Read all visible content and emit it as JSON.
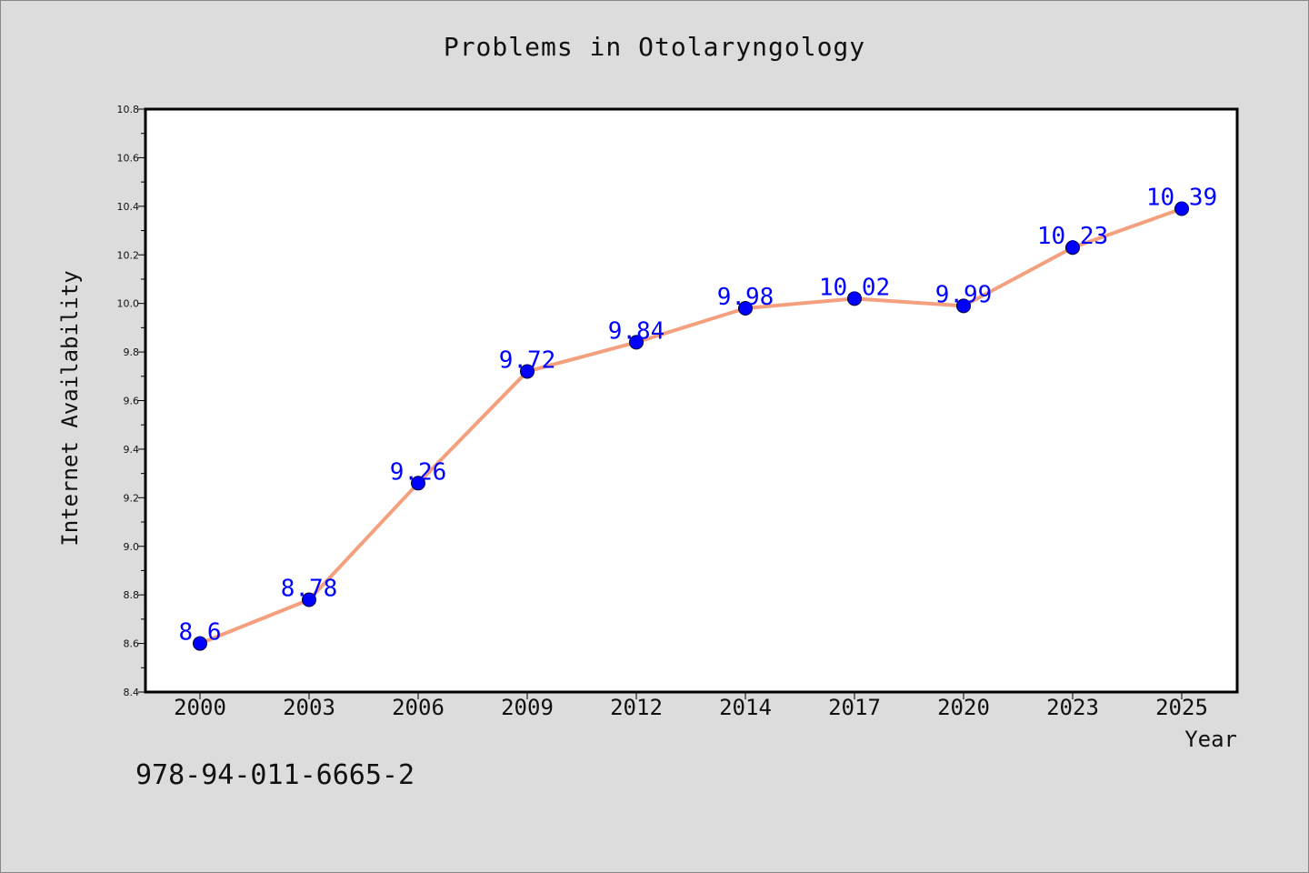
{
  "colors": {
    "background": "#dcdcdc",
    "plot_background": "#ffffff",
    "line": "#f4a07e",
    "marker": "#0000ff",
    "label": "#0000ff"
  },
  "isbn": "978-94-011-6665-2",
  "chart_data": {
    "type": "line",
    "title": "Problems in Otolaryngology",
    "xlabel": "Year",
    "ylabel": "Internet Availability",
    "categories": [
      "2000",
      "2003",
      "2006",
      "2009",
      "2012",
      "2014",
      "2017",
      "2020",
      "2023",
      "2025"
    ],
    "series": [
      {
        "values": [
          8.6,
          8.78,
          9.26,
          9.72,
          9.84,
          9.98,
          10.02,
          9.99,
          10.23,
          10.39
        ]
      }
    ],
    "data_labels": [
      "8.6",
      "8.78",
      "9.26",
      "9.72",
      "9.84",
      "9.98",
      "10.02",
      "9.99",
      "10.23",
      "10.39"
    ],
    "ylim": [
      8.4,
      10.8
    ],
    "yticks": [
      "8.4",
      "8.6",
      "8.8",
      "9.0",
      "9.2",
      "9.4",
      "9.6",
      "9.8",
      "10.0",
      "10.2",
      "10.4",
      "10.6",
      "10.8"
    ],
    "grid": false,
    "legend": "none"
  }
}
